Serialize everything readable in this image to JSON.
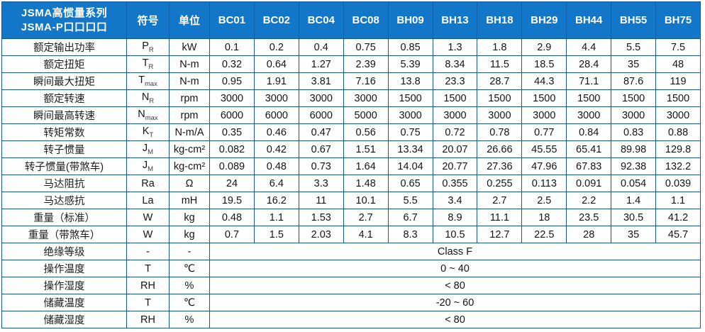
{
  "colors": {
    "header_bg": "#1277c8",
    "header_divider": "#0d60a8",
    "grid_border": "#1a5796",
    "header_text": "#ffffff",
    "body_text": "#141414"
  },
  "table": {
    "title_line1": "JSMA高惯量系列",
    "title_line2": "JSMA-P口口口口",
    "col_symbol": "符号",
    "col_unit": "单位",
    "models": [
      "BC01",
      "BC02",
      "BC04",
      "BC08",
      "BH09",
      "BH13",
      "BH18",
      "BH29",
      "BH44",
      "BH55",
      "BH75"
    ],
    "rows": [
      {
        "label": "额定输出功率",
        "sym": "P",
        "sub": "R",
        "unit": "kW",
        "values": [
          "0.1",
          "0.2",
          "0.4",
          "0.75",
          "0.85",
          "1.3",
          "1.8",
          "2.9",
          "4.4",
          "5.5",
          "7.5"
        ]
      },
      {
        "label": "额定扭矩",
        "sym": "T",
        "sub": "R",
        "unit": "N-m",
        "values": [
          "0.32",
          "0.64",
          "1.27",
          "2.39",
          "5.39",
          "8.34",
          "11.5",
          "18.5",
          "28.4",
          "35",
          "48"
        ]
      },
      {
        "label": "瞬间最大扭矩",
        "sym": "T",
        "sub": "max",
        "unit": "N-m",
        "values": [
          "0.95",
          "1.91",
          "3.81",
          "7.16",
          "13.8",
          "23.3",
          "28.7",
          "44.3",
          "71.1",
          "87.6",
          "119"
        ]
      },
      {
        "label": "额定转速",
        "sym": "N",
        "sub": "R",
        "unit": "rpm",
        "values": [
          "3000",
          "3000",
          "3000",
          "3000",
          "1500",
          "1500",
          "1500",
          "1500",
          "1500",
          "1500",
          "1500"
        ]
      },
      {
        "label": "瞬间最高转速",
        "sym": "N",
        "sub": "max",
        "unit": "rpm",
        "values": [
          "6000",
          "6000",
          "6000",
          "5000",
          "3000",
          "3000",
          "3000",
          "3000",
          "3000",
          "3000",
          "3000"
        ]
      },
      {
        "label": "转矩常数",
        "sym": "K",
        "sub": "T",
        "unit": "N-m/A",
        "values": [
          "0.35",
          "0.46",
          "0.47",
          "0.56",
          "0.75",
          "0.72",
          "0.78",
          "0.77",
          "0.84",
          "0.83",
          "0.88"
        ]
      },
      {
        "label": "转子惯量",
        "sym": "J",
        "sub": "M",
        "unit": "kg-cm²",
        "values": [
          "0.082",
          "0.42",
          "0.67",
          "1.51",
          "13.34",
          "20.07",
          "26.66",
          "45.55",
          "65.41",
          "89.98",
          "129.8"
        ]
      },
      {
        "label": "转子惯量(带煞车)",
        "sym": "J",
        "sub": "M",
        "unit": "kg-cm²",
        "values": [
          "0.089",
          "0.48",
          "0.73",
          "1.64",
          "14.04",
          "20.77",
          "27.36",
          "47.96",
          "67.83",
          "92.38",
          "132.2"
        ]
      },
      {
        "label": "马达阻抗",
        "sym": "Ra",
        "sub": "",
        "unit": "Ω",
        "values": [
          "24",
          "6.4",
          "3.3",
          "1.48",
          "0.65",
          "0.355",
          "0.255",
          "0.113",
          "0.091",
          "0.054",
          "0.039"
        ]
      },
      {
        "label": "马达感抗",
        "sym": "La",
        "sub": "",
        "unit": "mH",
        "values": [
          "19.5",
          "16.2",
          "11",
          "10.1",
          "5.5",
          "3.4",
          "2.7",
          "2.5",
          "2.2",
          "1.4",
          "1.1"
        ]
      },
      {
        "label": "重量（标准）",
        "sym": "W",
        "sub": "",
        "unit": "kg",
        "values": [
          "0.48",
          "1.1",
          "1.53",
          "2.7",
          "6.7",
          "8.9",
          "11.1",
          "18",
          "23.5",
          "30.5",
          "41.2"
        ]
      },
      {
        "label": "重量（带煞车）",
        "sym": "W",
        "sub": "",
        "unit": "kg",
        "values": [
          "0.7",
          "1.5",
          "2.03",
          "4.1",
          "8.3",
          "10.5",
          "12.7",
          "22.5",
          "28",
          "35",
          "45.7"
        ]
      },
      {
        "label": "绝缘等级",
        "sym": "-",
        "sub": "",
        "unit": "-",
        "span": "Class F"
      },
      {
        "label": "操作温度",
        "sym": "T",
        "sub": "",
        "unit": "℃",
        "span": "0 ~ 40"
      },
      {
        "label": "操作湿度",
        "sym": "RH",
        "sub": "",
        "unit": "%",
        "span": "< 80"
      },
      {
        "label": "储藏温度",
        "sym": "T",
        "sub": "",
        "unit": "℃",
        "span": "-20 ~ 60"
      },
      {
        "label": "储藏湿度",
        "sym": "RH",
        "sub": "",
        "unit": "%",
        "span": "< 80"
      }
    ]
  }
}
